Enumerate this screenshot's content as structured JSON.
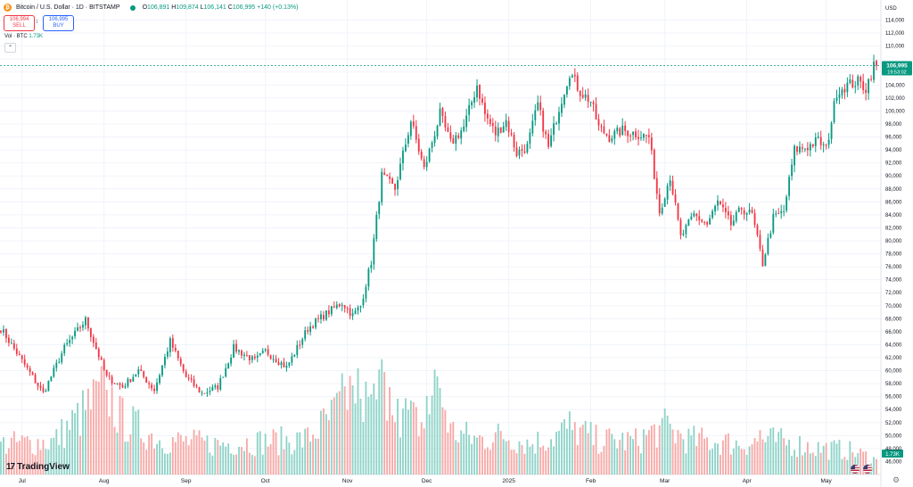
{
  "header": {
    "symbol": "Bitcoin / U.S. Dollar · 1D · BITSTAMP",
    "ohlc": {
      "o_label": "O",
      "o": "106,891",
      "h_label": "H",
      "h": "109,874",
      "l_label": "L",
      "l": "106,141",
      "c_label": "C",
      "c": "106,995",
      "change": "+140 (+0.13%)"
    }
  },
  "trade": {
    "sell_price": "106,994",
    "sell_label": "SELL",
    "spread": "1",
    "buy_price": "106,995",
    "buy_label": "BUY"
  },
  "volume_legend": {
    "label": "Vol · BTC",
    "value": "1.73K"
  },
  "axis": {
    "currency": "USD"
  },
  "brand": {
    "name": "TradingView"
  },
  "colors": {
    "up": "#089981",
    "down": "#f23645",
    "vol_up": "#8fd3c8",
    "vol_down": "#f7a9a7",
    "grid": "#f0f3fa",
    "price_line": "#089981",
    "text": "#131722",
    "axis_text": "#131722"
  },
  "chart_data": {
    "type": "candlestick",
    "title": "Bitcoin / U.S. Dollar · 1D · BITSTAMP",
    "ylim": [
      44000,
      116000
    ],
    "y_ticks": [
      46000,
      48000,
      50000,
      52000,
      54000,
      56000,
      58000,
      60000,
      62000,
      64000,
      66000,
      68000,
      70000,
      72000,
      74000,
      76000,
      78000,
      80000,
      82000,
      84000,
      86000,
      88000,
      90000,
      92000,
      94000,
      96000,
      98000,
      100000,
      102000,
      104000,
      106000,
      108000,
      110000,
      112000,
      114000
    ],
    "y_tick_labels": [
      "46,000",
      "48,000",
      "50,000",
      "52,000",
      "54,000",
      "56,000",
      "58,000",
      "60,000",
      "62,000",
      "64,000",
      "66,000",
      "68,000",
      "70,000",
      "72,000",
      "74,000",
      "76,000",
      "78,000",
      "80,000",
      "82,000",
      "84,000",
      "86,000",
      "88,000",
      "90,000",
      "92,000",
      "94,000",
      "96,000",
      "98,000",
      "100,000",
      "102,000",
      "104,000",
      "106,000",
      "108,000",
      "110,000",
      "112,000",
      "114,000"
    ],
    "x_labels": [
      {
        "label": "Jul",
        "index": 8
      },
      {
        "label": "Aug",
        "index": 39
      },
      {
        "label": "Sep",
        "index": 70
      },
      {
        "label": "Oct",
        "index": 100
      },
      {
        "label": "Nov",
        "index": 131
      },
      {
        "label": "Dec",
        "index": 161
      },
      {
        "label": "2025",
        "index": 192
      },
      {
        "label": "Feb",
        "index": 223
      },
      {
        "label": "Mar",
        "index": 251
      },
      {
        "label": "Apr",
        "index": 282
      },
      {
        "label": "May",
        "index": 312
      }
    ],
    "last_price": 106995,
    "last_price_label": "106,995",
    "countdown": "19:53:02",
    "volume_value_label": "1.73K",
    "volume_scale_max": 12000,
    "close_anchors": [
      [
        0,
        66500
      ],
      [
        8,
        61500
      ],
      [
        16,
        56500
      ],
      [
        24,
        63500
      ],
      [
        32,
        67800
      ],
      [
        40,
        59000
      ],
      [
        46,
        57500
      ],
      [
        52,
        60000
      ],
      [
        58,
        57000
      ],
      [
        64,
        64500
      ],
      [
        70,
        59000
      ],
      [
        76,
        56500
      ],
      [
        82,
        57500
      ],
      [
        88,
        63500
      ],
      [
        96,
        61500
      ],
      [
        100,
        63000
      ],
      [
        108,
        60500
      ],
      [
        116,
        66500
      ],
      [
        122,
        68500
      ],
      [
        129,
        70500
      ],
      [
        133,
        68500
      ],
      [
        136,
        70000
      ],
      [
        140,
        76800
      ],
      [
        144,
        90000
      ],
      [
        149,
        88000
      ],
      [
        155,
        98500
      ],
      [
        160,
        91000
      ],
      [
        166,
        99500
      ],
      [
        170,
        95000
      ],
      [
        175,
        97500
      ],
      [
        180,
        104000
      ],
      [
        183,
        99500
      ],
      [
        187,
        96500
      ],
      [
        191,
        98500
      ],
      [
        195,
        93500
      ],
      [
        199,
        94500
      ],
      [
        203,
        101000
      ],
      [
        207,
        94300
      ],
      [
        211,
        100500
      ],
      [
        215,
        106000
      ],
      [
        219,
        103000
      ],
      [
        223,
        101500
      ],
      [
        226,
        97500
      ],
      [
        230,
        96000
      ],
      [
        235,
        97000
      ],
      [
        240,
        96500
      ],
      [
        245,
        96000
      ],
      [
        249,
        84500
      ],
      [
        253,
        90000
      ],
      [
        257,
        80500
      ],
      [
        262,
        84000
      ],
      [
        267,
        82500
      ],
      [
        271,
        86000
      ],
      [
        276,
        82500
      ],
      [
        280,
        85000
      ],
      [
        284,
        84000
      ],
      [
        288,
        76500
      ],
      [
        292,
        83500
      ],
      [
        296,
        84500
      ],
      [
        300,
        94000
      ],
      [
        305,
        94500
      ],
      [
        309,
        95500
      ],
      [
        312,
        94000
      ],
      [
        316,
        103000
      ],
      [
        320,
        104000
      ],
      [
        324,
        104500
      ],
      [
        327,
        103500
      ],
      [
        330,
        107000
      ],
      [
        331,
        106995
      ]
    ],
    "volume_anchors": [
      [
        0,
        3500
      ],
      [
        20,
        3800
      ],
      [
        40,
        9800
      ],
      [
        45,
        6500
      ],
      [
        60,
        4000
      ],
      [
        80,
        3500
      ],
      [
        100,
        3800
      ],
      [
        115,
        4000
      ],
      [
        125,
        6500
      ],
      [
        133,
        10000
      ],
      [
        140,
        7500
      ],
      [
        145,
        11000
      ],
      [
        150,
        7500
      ],
      [
        160,
        5500
      ],
      [
        165,
        11000
      ],
      [
        170,
        5000
      ],
      [
        180,
        4000
      ],
      [
        190,
        4500
      ],
      [
        200,
        3500
      ],
      [
        210,
        4500
      ],
      [
        215,
        5500
      ],
      [
        225,
        4000
      ],
      [
        240,
        3800
      ],
      [
        250,
        5500
      ],
      [
        260,
        4000
      ],
      [
        270,
        3800
      ],
      [
        280,
        3500
      ],
      [
        290,
        4000
      ],
      [
        300,
        3500
      ],
      [
        310,
        3000
      ],
      [
        320,
        2800
      ],
      [
        331,
        1730
      ]
    ],
    "volume_spikes": [
      [
        40,
        9500
      ],
      [
        133,
        10000
      ],
      [
        136,
        8500
      ],
      [
        140,
        9000
      ],
      [
        145,
        11500
      ],
      [
        147,
        9800
      ],
      [
        150,
        8500
      ],
      [
        161,
        8800
      ],
      [
        165,
        11000
      ],
      [
        216,
        5000
      ],
      [
        249,
        5500
      ],
      [
        287,
        5000
      ]
    ]
  }
}
